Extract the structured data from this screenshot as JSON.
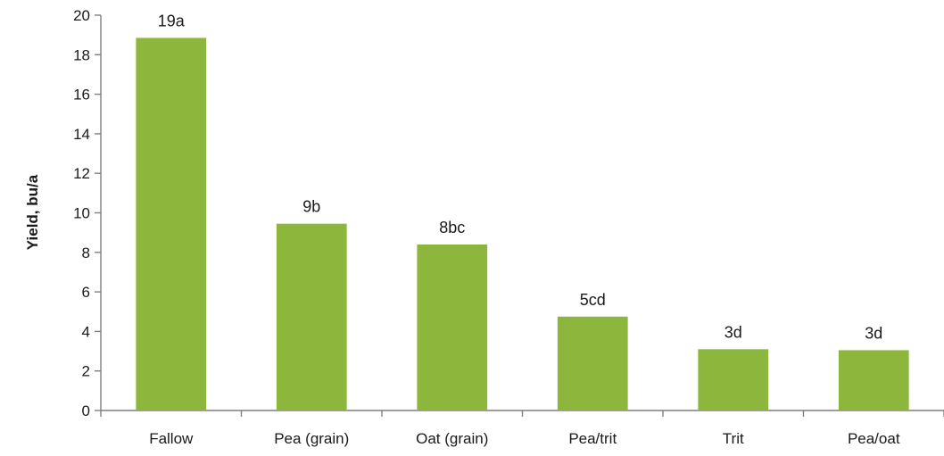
{
  "chart_data": {
    "type": "bar",
    "title": "",
    "xlabel": "",
    "ylabel": "Yield, bu/a",
    "ylim": [
      0,
      20
    ],
    "yticks": [
      0,
      2,
      4,
      6,
      8,
      10,
      12,
      14,
      16,
      18,
      20
    ],
    "grid": false,
    "legend": "none",
    "bar_color": "#8db63c",
    "categories": [
      "Fallow",
      "Pea (grain)",
      "Oat (grain)",
      "Pea/trit",
      "Trit",
      "Pea/oat"
    ],
    "values": [
      18.85,
      9.45,
      8.4,
      4.75,
      3.1,
      3.05
    ],
    "data_labels": [
      "19a",
      "9b",
      "8bc",
      "5cd",
      "3d",
      "3d"
    ]
  }
}
